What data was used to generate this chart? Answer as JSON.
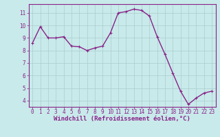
{
  "x": [
    0,
    1,
    2,
    3,
    4,
    5,
    6,
    7,
    8,
    9,
    10,
    11,
    12,
    13,
    14,
    15,
    16,
    17,
    18,
    19,
    20,
    21,
    22,
    23
  ],
  "y": [
    8.6,
    9.9,
    9.0,
    9.0,
    9.1,
    8.35,
    8.3,
    8.0,
    8.2,
    8.35,
    9.4,
    11.0,
    11.1,
    11.3,
    11.2,
    10.75,
    9.1,
    7.7,
    6.2,
    4.75,
    3.7,
    4.2,
    4.6,
    4.75
  ],
  "line_color": "#882288",
  "marker": "+",
  "marker_size": 3,
  "xlabel": "Windchill (Refroidissement éolien,°C)",
  "bg_color": "#c8eaea",
  "grid_color": "#aacccc",
  "axis_label_color": "#882288",
  "tick_label_color": "#882288",
  "spine_color": "#882288",
  "ylim": [
    3.5,
    11.7
  ],
  "yticks": [
    4,
    5,
    6,
    7,
    8,
    9,
    10,
    11
  ],
  "xlim": [
    -0.5,
    23.5
  ],
  "xticks": [
    0,
    1,
    2,
    3,
    4,
    5,
    6,
    7,
    8,
    9,
    10,
    11,
    12,
    13,
    14,
    15,
    16,
    17,
    18,
    19,
    20,
    21,
    22,
    23
  ],
  "xlabel_fontsize": 6.5,
  "tick_fontsize": 5.5,
  "line_width": 1.0,
  "marker_edge_width": 0.8
}
